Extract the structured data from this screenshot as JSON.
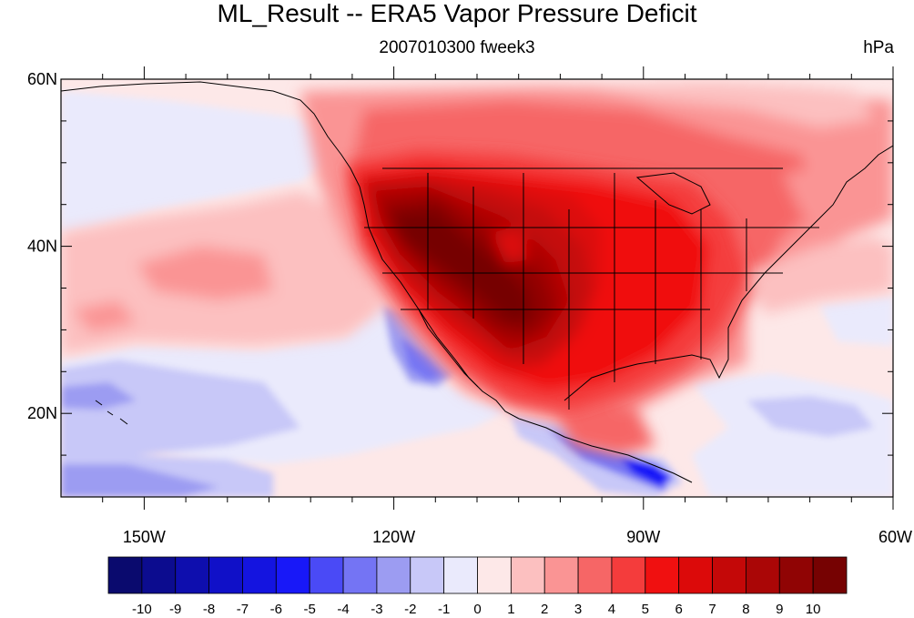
{
  "title": "ML_Result -- ERA5 Vapor Pressure Deficit",
  "subtitle": "2007010300 fweek3",
  "units": "hPa",
  "map": {
    "extent": {
      "lon_min": -160,
      "lon_max": -60,
      "lat_min": 10,
      "lat_max": 60
    },
    "lat_ticks": [
      {
        "label": "60N",
        "lat": 60
      },
      {
        "label": "40N",
        "lat": 40
      },
      {
        "label": "20N",
        "lat": 20
      }
    ],
    "lon_ticks": [
      {
        "label": "150W",
        "lon": -150
      },
      {
        "label": "120W",
        "lon": -120
      },
      {
        "label": "90W",
        "lon": -90
      },
      {
        "label": "60W",
        "lon": -60
      }
    ]
  },
  "colorbar": {
    "labels": [
      "-10",
      "-9",
      "-8",
      "-7",
      "-6",
      "-5",
      "-4",
      "-3",
      "-2",
      "-1",
      "0",
      "1",
      "2",
      "3",
      "4",
      "5",
      "6",
      "7",
      "8",
      "9",
      "10"
    ],
    "colors": [
      "#0a0a6e",
      "#0c0c8f",
      "#0e0eae",
      "#1010c8",
      "#1414e0",
      "#1818f8",
      "#4a4af6",
      "#7474f4",
      "#9c9cf2",
      "#c8c8f8",
      "#eaeafc",
      "#fde8e8",
      "#fcc0c0",
      "#fa9494",
      "#f66666",
      "#f43c3c",
      "#f01010",
      "#dc0a0a",
      "#c40808",
      "#aa0606",
      "#900404",
      "#760202"
    ]
  }
}
